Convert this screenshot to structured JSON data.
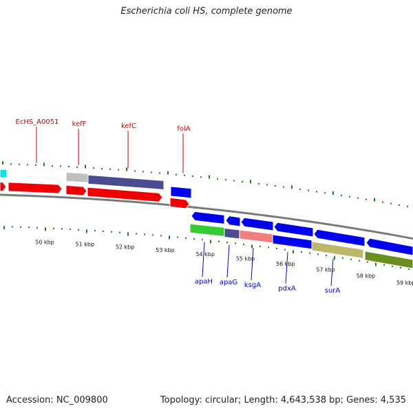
{
  "title": "Escherichia coli HS, complete genome",
  "footer": {
    "accession": "Accession: NC_009800",
    "summary": "Topology: circular; Length: 4,643,538 bp; Genes: 4,535"
  },
  "genome_map": {
    "scale_labels": [
      "50 kbp",
      "51 kbp",
      "52 kbp",
      "53 kbp",
      "54 kbp",
      "55 kbp",
      "56 kbp",
      "57 kbp",
      "58 kbp",
      "59 kbp"
    ],
    "forward_gene_labels": [
      "EcHS_A0051",
      "kefF",
      "kefC",
      "folA"
    ],
    "reverse_gene_labels": [
      "apaH",
      "apaG",
      "ksgA",
      "pdxA",
      "surA"
    ],
    "colors": {
      "forward_label": "#cc0000",
      "reverse_label": "#0000cc",
      "tick": "#1f7a1f",
      "backbone": "#7a7a7a",
      "red_gene": "#ee0000",
      "blue_gene": "#0000ee",
      "cyan_gene": "#00e5ee",
      "gray_gene": "#c0c0c0",
      "purple_gene": "#4b4b8f",
      "green_gene": "#33cc33",
      "salmon_gene": "#f08080",
      "khaki_gene": "#bdb76b",
      "olive_gene": "#6b8e23"
    }
  }
}
